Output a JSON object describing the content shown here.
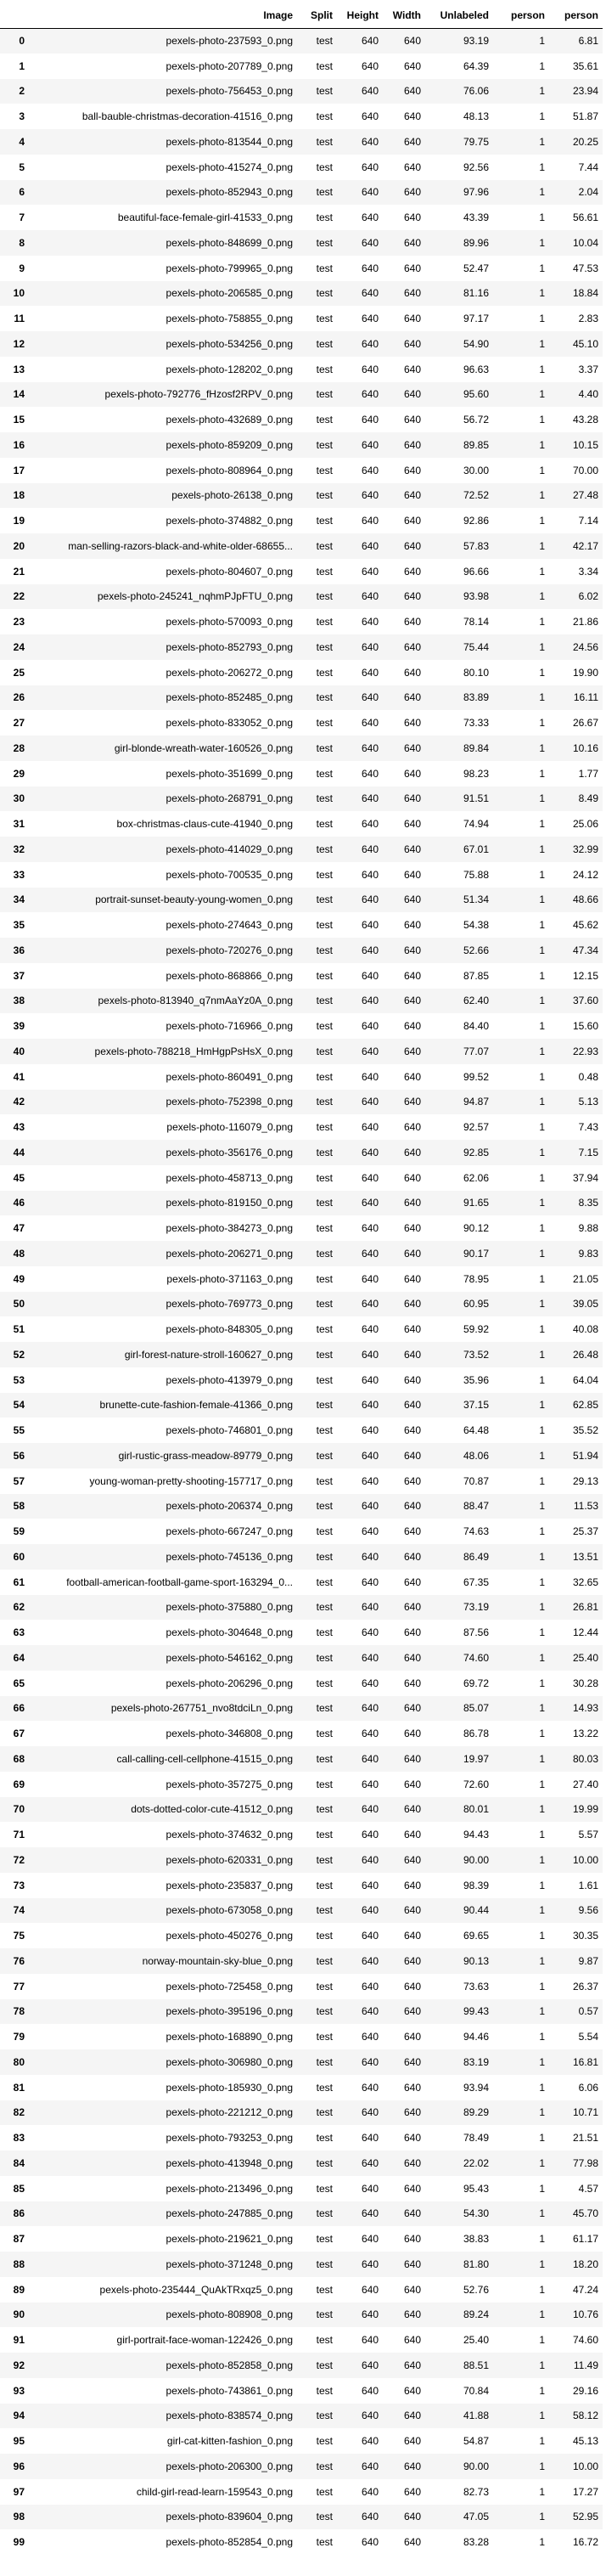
{
  "table": {
    "columns": [
      "",
      "Image",
      "Split",
      "Height",
      "Width",
      "Unlabeled",
      "person",
      "person"
    ],
    "rows": [
      [
        "0",
        "pexels-photo-237593_0.png",
        "test",
        "640",
        "640",
        "93.19",
        "1",
        "6.81"
      ],
      [
        "1",
        "pexels-photo-207789_0.png",
        "test",
        "640",
        "640",
        "64.39",
        "1",
        "35.61"
      ],
      [
        "2",
        "pexels-photo-756453_0.png",
        "test",
        "640",
        "640",
        "76.06",
        "1",
        "23.94"
      ],
      [
        "3",
        "ball-bauble-christmas-decoration-41516_0.png",
        "test",
        "640",
        "640",
        "48.13",
        "1",
        "51.87"
      ],
      [
        "4",
        "pexels-photo-813544_0.png",
        "test",
        "640",
        "640",
        "79.75",
        "1",
        "20.25"
      ],
      [
        "5",
        "pexels-photo-415274_0.png",
        "test",
        "640",
        "640",
        "92.56",
        "1",
        "7.44"
      ],
      [
        "6",
        "pexels-photo-852943_0.png",
        "test",
        "640",
        "640",
        "97.96",
        "1",
        "2.04"
      ],
      [
        "7",
        "beautiful-face-female-girl-41533_0.png",
        "test",
        "640",
        "640",
        "43.39",
        "1",
        "56.61"
      ],
      [
        "8",
        "pexels-photo-848699_0.png",
        "test",
        "640",
        "640",
        "89.96",
        "1",
        "10.04"
      ],
      [
        "9",
        "pexels-photo-799965_0.png",
        "test",
        "640",
        "640",
        "52.47",
        "1",
        "47.53"
      ],
      [
        "10",
        "pexels-photo-206585_0.png",
        "test",
        "640",
        "640",
        "81.16",
        "1",
        "18.84"
      ],
      [
        "11",
        "pexels-photo-758855_0.png",
        "test",
        "640",
        "640",
        "97.17",
        "1",
        "2.83"
      ],
      [
        "12",
        "pexels-photo-534256_0.png",
        "test",
        "640",
        "640",
        "54.90",
        "1",
        "45.10"
      ],
      [
        "13",
        "pexels-photo-128202_0.png",
        "test",
        "640",
        "640",
        "96.63",
        "1",
        "3.37"
      ],
      [
        "14",
        "pexels-photo-792776_fHzosf2RPV_0.png",
        "test",
        "640",
        "640",
        "95.60",
        "1",
        "4.40"
      ],
      [
        "15",
        "pexels-photo-432689_0.png",
        "test",
        "640",
        "640",
        "56.72",
        "1",
        "43.28"
      ],
      [
        "16",
        "pexels-photo-859209_0.png",
        "test",
        "640",
        "640",
        "89.85",
        "1",
        "10.15"
      ],
      [
        "17",
        "pexels-photo-808964_0.png",
        "test",
        "640",
        "640",
        "30.00",
        "1",
        "70.00"
      ],
      [
        "18",
        "pexels-photo-26138_0.png",
        "test",
        "640",
        "640",
        "72.52",
        "1",
        "27.48"
      ],
      [
        "19",
        "pexels-photo-374882_0.png",
        "test",
        "640",
        "640",
        "92.86",
        "1",
        "7.14"
      ],
      [
        "20",
        "man-selling-razors-black-and-white-older-68655...",
        "test",
        "640",
        "640",
        "57.83",
        "1",
        "42.17"
      ],
      [
        "21",
        "pexels-photo-804607_0.png",
        "test",
        "640",
        "640",
        "96.66",
        "1",
        "3.34"
      ],
      [
        "22",
        "pexels-photo-245241_nqhmPJpFTU_0.png",
        "test",
        "640",
        "640",
        "93.98",
        "1",
        "6.02"
      ],
      [
        "23",
        "pexels-photo-570093_0.png",
        "test",
        "640",
        "640",
        "78.14",
        "1",
        "21.86"
      ],
      [
        "24",
        "pexels-photo-852793_0.png",
        "test",
        "640",
        "640",
        "75.44",
        "1",
        "24.56"
      ],
      [
        "25",
        "pexels-photo-206272_0.png",
        "test",
        "640",
        "640",
        "80.10",
        "1",
        "19.90"
      ],
      [
        "26",
        "pexels-photo-852485_0.png",
        "test",
        "640",
        "640",
        "83.89",
        "1",
        "16.11"
      ],
      [
        "27",
        "pexels-photo-833052_0.png",
        "test",
        "640",
        "640",
        "73.33",
        "1",
        "26.67"
      ],
      [
        "28",
        "girl-blonde-wreath-water-160526_0.png",
        "test",
        "640",
        "640",
        "89.84",
        "1",
        "10.16"
      ],
      [
        "29",
        "pexels-photo-351699_0.png",
        "test",
        "640",
        "640",
        "98.23",
        "1",
        "1.77"
      ],
      [
        "30",
        "pexels-photo-268791_0.png",
        "test",
        "640",
        "640",
        "91.51",
        "1",
        "8.49"
      ],
      [
        "31",
        "box-christmas-claus-cute-41940_0.png",
        "test",
        "640",
        "640",
        "74.94",
        "1",
        "25.06"
      ],
      [
        "32",
        "pexels-photo-414029_0.png",
        "test",
        "640",
        "640",
        "67.01",
        "1",
        "32.99"
      ],
      [
        "33",
        "pexels-photo-700535_0.png",
        "test",
        "640",
        "640",
        "75.88",
        "1",
        "24.12"
      ],
      [
        "34",
        "portrait-sunset-beauty-young-women_0.png",
        "test",
        "640",
        "640",
        "51.34",
        "1",
        "48.66"
      ],
      [
        "35",
        "pexels-photo-274643_0.png",
        "test",
        "640",
        "640",
        "54.38",
        "1",
        "45.62"
      ],
      [
        "36",
        "pexels-photo-720276_0.png",
        "test",
        "640",
        "640",
        "52.66",
        "1",
        "47.34"
      ],
      [
        "37",
        "pexels-photo-868866_0.png",
        "test",
        "640",
        "640",
        "87.85",
        "1",
        "12.15"
      ],
      [
        "38",
        "pexels-photo-813940_q7nmAaYz0A_0.png",
        "test",
        "640",
        "640",
        "62.40",
        "1",
        "37.60"
      ],
      [
        "39",
        "pexels-photo-716966_0.png",
        "test",
        "640",
        "640",
        "84.40",
        "1",
        "15.60"
      ],
      [
        "40",
        "pexels-photo-788218_HmHgpPsHsX_0.png",
        "test",
        "640",
        "640",
        "77.07",
        "1",
        "22.93"
      ],
      [
        "41",
        "pexels-photo-860491_0.png",
        "test",
        "640",
        "640",
        "99.52",
        "1",
        "0.48"
      ],
      [
        "42",
        "pexels-photo-752398_0.png",
        "test",
        "640",
        "640",
        "94.87",
        "1",
        "5.13"
      ],
      [
        "43",
        "pexels-photo-116079_0.png",
        "test",
        "640",
        "640",
        "92.57",
        "1",
        "7.43"
      ],
      [
        "44",
        "pexels-photo-356176_0.png",
        "test",
        "640",
        "640",
        "92.85",
        "1",
        "7.15"
      ],
      [
        "45",
        "pexels-photo-458713_0.png",
        "test",
        "640",
        "640",
        "62.06",
        "1",
        "37.94"
      ],
      [
        "46",
        "pexels-photo-819150_0.png",
        "test",
        "640",
        "640",
        "91.65",
        "1",
        "8.35"
      ],
      [
        "47",
        "pexels-photo-384273_0.png",
        "test",
        "640",
        "640",
        "90.12",
        "1",
        "9.88"
      ],
      [
        "48",
        "pexels-photo-206271_0.png",
        "test",
        "640",
        "640",
        "90.17",
        "1",
        "9.83"
      ],
      [
        "49",
        "pexels-photo-371163_0.png",
        "test",
        "640",
        "640",
        "78.95",
        "1",
        "21.05"
      ],
      [
        "50",
        "pexels-photo-769773_0.png",
        "test",
        "640",
        "640",
        "60.95",
        "1",
        "39.05"
      ],
      [
        "51",
        "pexels-photo-848305_0.png",
        "test",
        "640",
        "640",
        "59.92",
        "1",
        "40.08"
      ],
      [
        "52",
        "girl-forest-nature-stroll-160627_0.png",
        "test",
        "640",
        "640",
        "73.52",
        "1",
        "26.48"
      ],
      [
        "53",
        "pexels-photo-413979_0.png",
        "test",
        "640",
        "640",
        "35.96",
        "1",
        "64.04"
      ],
      [
        "54",
        "brunette-cute-fashion-female-41366_0.png",
        "test",
        "640",
        "640",
        "37.15",
        "1",
        "62.85"
      ],
      [
        "55",
        "pexels-photo-746801_0.png",
        "test",
        "640",
        "640",
        "64.48",
        "1",
        "35.52"
      ],
      [
        "56",
        "girl-rustic-grass-meadow-89779_0.png",
        "test",
        "640",
        "640",
        "48.06",
        "1",
        "51.94"
      ],
      [
        "57",
        "young-woman-pretty-shooting-157717_0.png",
        "test",
        "640",
        "640",
        "70.87",
        "1",
        "29.13"
      ],
      [
        "58",
        "pexels-photo-206374_0.png",
        "test",
        "640",
        "640",
        "88.47",
        "1",
        "11.53"
      ],
      [
        "59",
        "pexels-photo-667247_0.png",
        "test",
        "640",
        "640",
        "74.63",
        "1",
        "25.37"
      ],
      [
        "60",
        "pexels-photo-745136_0.png",
        "test",
        "640",
        "640",
        "86.49",
        "1",
        "13.51"
      ],
      [
        "61",
        "football-american-football-game-sport-163294_0...",
        "test",
        "640",
        "640",
        "67.35",
        "1",
        "32.65"
      ],
      [
        "62",
        "pexels-photo-375880_0.png",
        "test",
        "640",
        "640",
        "73.19",
        "1",
        "26.81"
      ],
      [
        "63",
        "pexels-photo-304648_0.png",
        "test",
        "640",
        "640",
        "87.56",
        "1",
        "12.44"
      ],
      [
        "64",
        "pexels-photo-546162_0.png",
        "test",
        "640",
        "640",
        "74.60",
        "1",
        "25.40"
      ],
      [
        "65",
        "pexels-photo-206296_0.png",
        "test",
        "640",
        "640",
        "69.72",
        "1",
        "30.28"
      ],
      [
        "66",
        "pexels-photo-267751_nvo8tdciLn_0.png",
        "test",
        "640",
        "640",
        "85.07",
        "1",
        "14.93"
      ],
      [
        "67",
        "pexels-photo-346808_0.png",
        "test",
        "640",
        "640",
        "86.78",
        "1",
        "13.22"
      ],
      [
        "68",
        "call-calling-cell-cellphone-41515_0.png",
        "test",
        "640",
        "640",
        "19.97",
        "1",
        "80.03"
      ],
      [
        "69",
        "pexels-photo-357275_0.png",
        "test",
        "640",
        "640",
        "72.60",
        "1",
        "27.40"
      ],
      [
        "70",
        "dots-dotted-color-cute-41512_0.png",
        "test",
        "640",
        "640",
        "80.01",
        "1",
        "19.99"
      ],
      [
        "71",
        "pexels-photo-374632_0.png",
        "test",
        "640",
        "640",
        "94.43",
        "1",
        "5.57"
      ],
      [
        "72",
        "pexels-photo-620331_0.png",
        "test",
        "640",
        "640",
        "90.00",
        "1",
        "10.00"
      ],
      [
        "73",
        "pexels-photo-235837_0.png",
        "test",
        "640",
        "640",
        "98.39",
        "1",
        "1.61"
      ],
      [
        "74",
        "pexels-photo-673058_0.png",
        "test",
        "640",
        "640",
        "90.44",
        "1",
        "9.56"
      ],
      [
        "75",
        "pexels-photo-450276_0.png",
        "test",
        "640",
        "640",
        "69.65",
        "1",
        "30.35"
      ],
      [
        "76",
        "norway-mountain-sky-blue_0.png",
        "test",
        "640",
        "640",
        "90.13",
        "1",
        "9.87"
      ],
      [
        "77",
        "pexels-photo-725458_0.png",
        "test",
        "640",
        "640",
        "73.63",
        "1",
        "26.37"
      ],
      [
        "78",
        "pexels-photo-395196_0.png",
        "test",
        "640",
        "640",
        "99.43",
        "1",
        "0.57"
      ],
      [
        "79",
        "pexels-photo-168890_0.png",
        "test",
        "640",
        "640",
        "94.46",
        "1",
        "5.54"
      ],
      [
        "80",
        "pexels-photo-306980_0.png",
        "test",
        "640",
        "640",
        "83.19",
        "1",
        "16.81"
      ],
      [
        "81",
        "pexels-photo-185930_0.png",
        "test",
        "640",
        "640",
        "93.94",
        "1",
        "6.06"
      ],
      [
        "82",
        "pexels-photo-221212_0.png",
        "test",
        "640",
        "640",
        "89.29",
        "1",
        "10.71"
      ],
      [
        "83",
        "pexels-photo-793253_0.png",
        "test",
        "640",
        "640",
        "78.49",
        "1",
        "21.51"
      ],
      [
        "84",
        "pexels-photo-413948_0.png",
        "test",
        "640",
        "640",
        "22.02",
        "1",
        "77.98"
      ],
      [
        "85",
        "pexels-photo-213496_0.png",
        "test",
        "640",
        "640",
        "95.43",
        "1",
        "4.57"
      ],
      [
        "86",
        "pexels-photo-247885_0.png",
        "test",
        "640",
        "640",
        "54.30",
        "1",
        "45.70"
      ],
      [
        "87",
        "pexels-photo-219621_0.png",
        "test",
        "640",
        "640",
        "38.83",
        "1",
        "61.17"
      ],
      [
        "88",
        "pexels-photo-371248_0.png",
        "test",
        "640",
        "640",
        "81.80",
        "1",
        "18.20"
      ],
      [
        "89",
        "pexels-photo-235444_QuAkTRxqz5_0.png",
        "test",
        "640",
        "640",
        "52.76",
        "1",
        "47.24"
      ],
      [
        "90",
        "pexels-photo-808908_0.png",
        "test",
        "640",
        "640",
        "89.24",
        "1",
        "10.76"
      ],
      [
        "91",
        "girl-portrait-face-woman-122426_0.png",
        "test",
        "640",
        "640",
        "25.40",
        "1",
        "74.60"
      ],
      [
        "92",
        "pexels-photo-852858_0.png",
        "test",
        "640",
        "640",
        "88.51",
        "1",
        "11.49"
      ],
      [
        "93",
        "pexels-photo-743861_0.png",
        "test",
        "640",
        "640",
        "70.84",
        "1",
        "29.16"
      ],
      [
        "94",
        "pexels-photo-838574_0.png",
        "test",
        "640",
        "640",
        "41.88",
        "1",
        "58.12"
      ],
      [
        "95",
        "girl-cat-kitten-fashion_0.png",
        "test",
        "640",
        "640",
        "54.87",
        "1",
        "45.13"
      ],
      [
        "96",
        "pexels-photo-206300_0.png",
        "test",
        "640",
        "640",
        "90.00",
        "1",
        "10.00"
      ],
      [
        "97",
        "child-girl-read-learn-159543_0.png",
        "test",
        "640",
        "640",
        "82.73",
        "1",
        "17.27"
      ],
      [
        "98",
        "pexels-photo-839604_0.png",
        "test",
        "640",
        "640",
        "47.05",
        "1",
        "52.95"
      ],
      [
        "99",
        "pexels-photo-852854_0.png",
        "test",
        "640",
        "640",
        "83.28",
        "1",
        "16.72"
      ]
    ]
  }
}
